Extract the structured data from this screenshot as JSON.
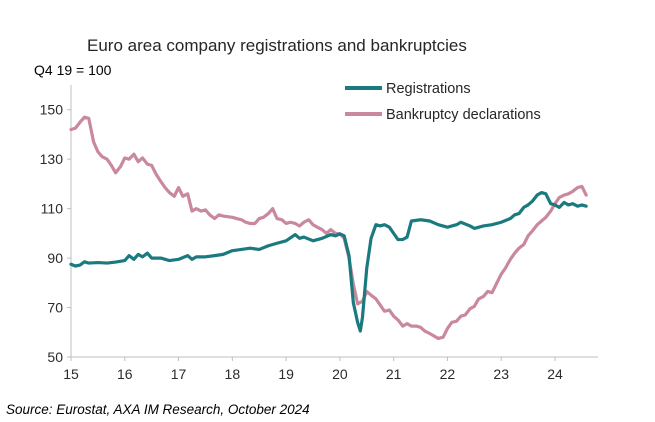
{
  "chart_data": {
    "type": "line",
    "title": "Euro area company registrations and bankruptcies",
    "ylabel": "Q4 19 = 100",
    "xlabel": "",
    "source": "Source: Eurostat, AXA IM Research, October 2024",
    "ylim": [
      50,
      160
    ],
    "xlim": [
      2015,
      2024.8
    ],
    "yticks": [
      50,
      70,
      90,
      110,
      130,
      150
    ],
    "xticks": [
      {
        "value": 2015,
        "label": "15"
      },
      {
        "value": 2016,
        "label": "16"
      },
      {
        "value": 2017,
        "label": "17"
      },
      {
        "value": 2018,
        "label": "18"
      },
      {
        "value": 2019,
        "label": "19"
      },
      {
        "value": 2020,
        "label": "20"
      },
      {
        "value": 2021,
        "label": "21"
      },
      {
        "value": 2022,
        "label": "22"
      },
      {
        "value": 2023,
        "label": "23"
      },
      {
        "value": 2024,
        "label": "24"
      }
    ],
    "grid": false,
    "legend_position": "top-right",
    "series": [
      {
        "name": "Registrations",
        "color": "#1b7a80",
        "points": [
          [
            2015.0,
            87.5
          ],
          [
            2015.08,
            86.8
          ],
          [
            2015.17,
            87.2
          ],
          [
            2015.25,
            88.5
          ],
          [
            2015.33,
            88.0
          ],
          [
            2015.5,
            88.2
          ],
          [
            2015.67,
            88.0
          ],
          [
            2015.83,
            88.4
          ],
          [
            2016.0,
            89.0
          ],
          [
            2016.08,
            91.0
          ],
          [
            2016.17,
            89.5
          ],
          [
            2016.25,
            91.5
          ],
          [
            2016.33,
            90.5
          ],
          [
            2016.42,
            92.0
          ],
          [
            2016.5,
            90.0
          ],
          [
            2016.67,
            90.0
          ],
          [
            2016.83,
            89.0
          ],
          [
            2017.0,
            89.5
          ],
          [
            2017.17,
            91.0
          ],
          [
            2017.25,
            89.5
          ],
          [
            2017.33,
            90.5
          ],
          [
            2017.5,
            90.5
          ],
          [
            2017.67,
            91.0
          ],
          [
            2017.83,
            91.5
          ],
          [
            2018.0,
            93.0
          ],
          [
            2018.17,
            93.5
          ],
          [
            2018.33,
            94.0
          ],
          [
            2018.5,
            93.5
          ],
          [
            2018.67,
            95.0
          ],
          [
            2018.83,
            96.0
          ],
          [
            2019.0,
            97.0
          ],
          [
            2019.17,
            99.5
          ],
          [
            2019.25,
            98.0
          ],
          [
            2019.33,
            98.5
          ],
          [
            2019.5,
            97.0
          ],
          [
            2019.67,
            98.0
          ],
          [
            2019.83,
            99.5
          ],
          [
            2019.92,
            99.0
          ],
          [
            2020.0,
            99.8
          ],
          [
            2020.08,
            99.0
          ],
          [
            2020.17,
            91.0
          ],
          [
            2020.25,
            72.0
          ],
          [
            2020.33,
            64.0
          ],
          [
            2020.38,
            60.5
          ],
          [
            2020.42,
            66.0
          ],
          [
            2020.5,
            86.0
          ],
          [
            2020.58,
            98.0
          ],
          [
            2020.67,
            103.5
          ],
          [
            2020.75,
            103.0
          ],
          [
            2020.83,
            103.5
          ],
          [
            2020.92,
            102.5
          ],
          [
            2021.0,
            100.0
          ],
          [
            2021.08,
            97.5
          ],
          [
            2021.17,
            97.5
          ],
          [
            2021.25,
            98.5
          ],
          [
            2021.33,
            105.0
          ],
          [
            2021.5,
            105.5
          ],
          [
            2021.67,
            105.0
          ],
          [
            2021.83,
            103.5
          ],
          [
            2022.0,
            102.5
          ],
          [
            2022.17,
            103.5
          ],
          [
            2022.25,
            104.5
          ],
          [
            2022.42,
            103.0
          ],
          [
            2022.5,
            102.0
          ],
          [
            2022.67,
            103.0
          ],
          [
            2022.83,
            103.5
          ],
          [
            2023.0,
            104.5
          ],
          [
            2023.17,
            106.0
          ],
          [
            2023.25,
            107.5
          ],
          [
            2023.33,
            108.0
          ],
          [
            2023.42,
            110.5
          ],
          [
            2023.5,
            111.5
          ],
          [
            2023.58,
            113.0
          ],
          [
            2023.67,
            115.5
          ],
          [
            2023.75,
            116.5
          ],
          [
            2023.83,
            116.0
          ],
          [
            2023.92,
            112.0
          ],
          [
            2024.0,
            111.5
          ],
          [
            2024.08,
            110.5
          ],
          [
            2024.17,
            112.5
          ],
          [
            2024.25,
            111.5
          ],
          [
            2024.33,
            112.0
          ],
          [
            2024.42,
            111.0
          ],
          [
            2024.5,
            111.5
          ],
          [
            2024.58,
            111.0
          ]
        ]
      },
      {
        "name": "Bankruptcy declarations",
        "color": "#c9889c",
        "points": [
          [
            2015.0,
            142.0
          ],
          [
            2015.08,
            142.5
          ],
          [
            2015.17,
            145.0
          ],
          [
            2015.25,
            147.0
          ],
          [
            2015.33,
            146.5
          ],
          [
            2015.42,
            137.0
          ],
          [
            2015.5,
            133.0
          ],
          [
            2015.58,
            131.0
          ],
          [
            2015.67,
            130.0
          ],
          [
            2015.75,
            127.5
          ],
          [
            2015.83,
            124.5
          ],
          [
            2015.92,
            127.0
          ],
          [
            2016.0,
            130.5
          ],
          [
            2016.08,
            130.0
          ],
          [
            2016.17,
            132.0
          ],
          [
            2016.25,
            129.0
          ],
          [
            2016.33,
            130.5
          ],
          [
            2016.42,
            128.0
          ],
          [
            2016.5,
            127.5
          ],
          [
            2016.58,
            124.0
          ],
          [
            2016.67,
            121.0
          ],
          [
            2016.75,
            118.5
          ],
          [
            2016.83,
            116.5
          ],
          [
            2016.92,
            115.0
          ],
          [
            2017.0,
            118.5
          ],
          [
            2017.08,
            115.0
          ],
          [
            2017.17,
            116.0
          ],
          [
            2017.25,
            109.0
          ],
          [
            2017.33,
            110.0
          ],
          [
            2017.42,
            109.0
          ],
          [
            2017.5,
            109.5
          ],
          [
            2017.58,
            107.5
          ],
          [
            2017.67,
            106.0
          ],
          [
            2017.75,
            107.5
          ],
          [
            2017.83,
            107.0
          ],
          [
            2018.0,
            106.5
          ],
          [
            2018.08,
            106.0
          ],
          [
            2018.17,
            105.5
          ],
          [
            2018.25,
            104.5
          ],
          [
            2018.33,
            104.0
          ],
          [
            2018.42,
            104.0
          ],
          [
            2018.5,
            106.0
          ],
          [
            2018.58,
            106.5
          ],
          [
            2018.67,
            108.0
          ],
          [
            2018.75,
            110.0
          ],
          [
            2018.83,
            106.0
          ],
          [
            2018.92,
            105.5
          ],
          [
            2019.0,
            104.0
          ],
          [
            2019.08,
            104.5
          ],
          [
            2019.17,
            104.0
          ],
          [
            2019.25,
            103.0
          ],
          [
            2019.33,
            104.5
          ],
          [
            2019.42,
            105.5
          ],
          [
            2019.5,
            103.5
          ],
          [
            2019.58,
            102.5
          ],
          [
            2019.67,
            101.5
          ],
          [
            2019.75,
            100.0
          ],
          [
            2019.83,
            101.5
          ],
          [
            2019.92,
            100.0
          ],
          [
            2020.0,
            99.8
          ],
          [
            2020.08,
            98.0
          ],
          [
            2020.17,
            90.0
          ],
          [
            2020.25,
            79.5
          ],
          [
            2020.33,
            71.5
          ],
          [
            2020.42,
            72.5
          ],
          [
            2020.5,
            76.5
          ],
          [
            2020.58,
            75.0
          ],
          [
            2020.67,
            73.5
          ],
          [
            2020.75,
            71.0
          ],
          [
            2020.83,
            68.5
          ],
          [
            2020.92,
            69.0
          ],
          [
            2021.0,
            66.5
          ],
          [
            2021.08,
            65.0
          ],
          [
            2021.17,
            62.5
          ],
          [
            2021.25,
            63.5
          ],
          [
            2021.33,
            62.5
          ],
          [
            2021.42,
            62.5
          ],
          [
            2021.5,
            62.0
          ],
          [
            2021.58,
            60.5
          ],
          [
            2021.67,
            59.5
          ],
          [
            2021.75,
            58.5
          ],
          [
            2021.83,
            57.5
          ],
          [
            2021.92,
            58.0
          ],
          [
            2022.0,
            61.5
          ],
          [
            2022.08,
            64.0
          ],
          [
            2022.17,
            64.5
          ],
          [
            2022.25,
            66.5
          ],
          [
            2022.33,
            67.0
          ],
          [
            2022.42,
            69.5
          ],
          [
            2022.5,
            70.5
          ],
          [
            2022.58,
            73.5
          ],
          [
            2022.67,
            74.5
          ],
          [
            2022.75,
            76.5
          ],
          [
            2022.83,
            76.0
          ],
          [
            2022.92,
            80.0
          ],
          [
            2023.0,
            83.5
          ],
          [
            2023.08,
            86.0
          ],
          [
            2023.17,
            89.5
          ],
          [
            2023.25,
            92.0
          ],
          [
            2023.33,
            94.0
          ],
          [
            2023.42,
            95.5
          ],
          [
            2023.5,
            99.0
          ],
          [
            2023.58,
            101.0
          ],
          [
            2023.67,
            103.5
          ],
          [
            2023.75,
            105.0
          ],
          [
            2023.83,
            106.5
          ],
          [
            2023.92,
            109.0
          ],
          [
            2024.0,
            112.0
          ],
          [
            2024.08,
            114.5
          ],
          [
            2024.17,
            115.5
          ],
          [
            2024.25,
            116.0
          ],
          [
            2024.33,
            117.0
          ],
          [
            2024.42,
            118.5
          ],
          [
            2024.5,
            119.0
          ],
          [
            2024.58,
            115.5
          ]
        ]
      }
    ]
  }
}
